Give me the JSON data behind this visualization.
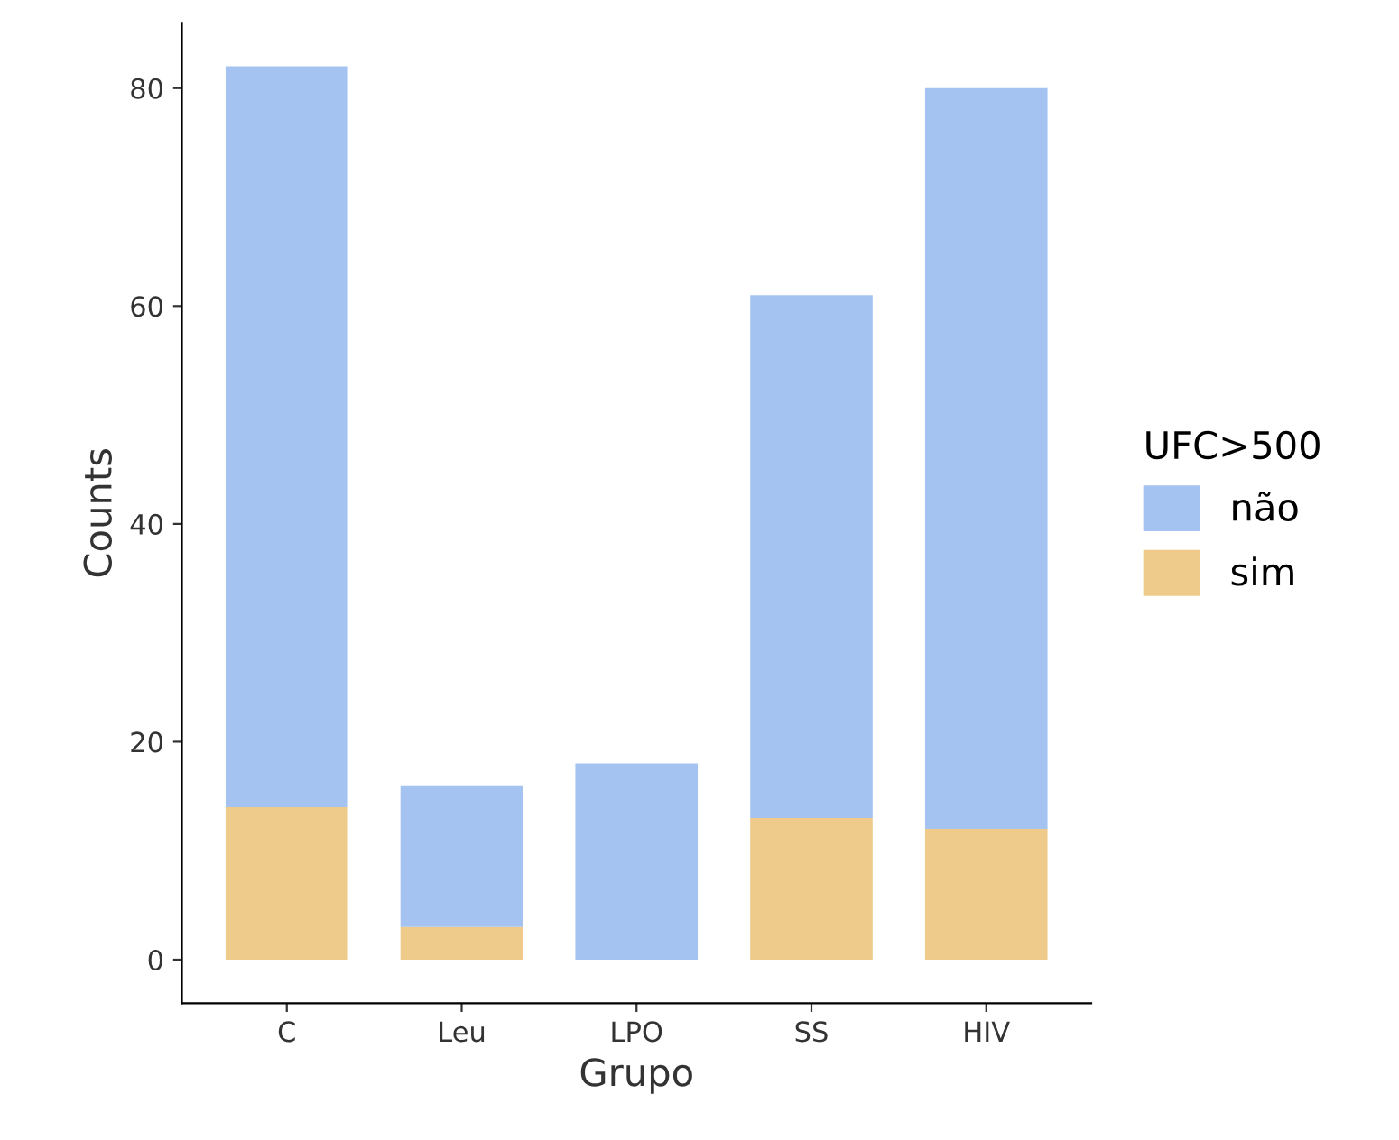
{
  "chart_data": {
    "type": "bar",
    "stacked": true,
    "xlabel": "Grupo",
    "ylabel": "Counts",
    "legend_title": "UFC>500",
    "legend": "right",
    "grid": false,
    "categories": [
      "C",
      "Leu",
      "LPO",
      "SS",
      "HIV"
    ],
    "series": [
      {
        "name": "sim",
        "color": "#efcb8b",
        "values": [
          14,
          3,
          0,
          13,
          12
        ]
      },
      {
        "name": "não",
        "color": "#a4c3f0",
        "values": [
          68,
          13,
          18,
          48,
          68
        ]
      }
    ],
    "ylim": [
      -4,
      86
    ],
    "yticks": [
      0,
      20,
      40,
      60,
      80
    ]
  }
}
